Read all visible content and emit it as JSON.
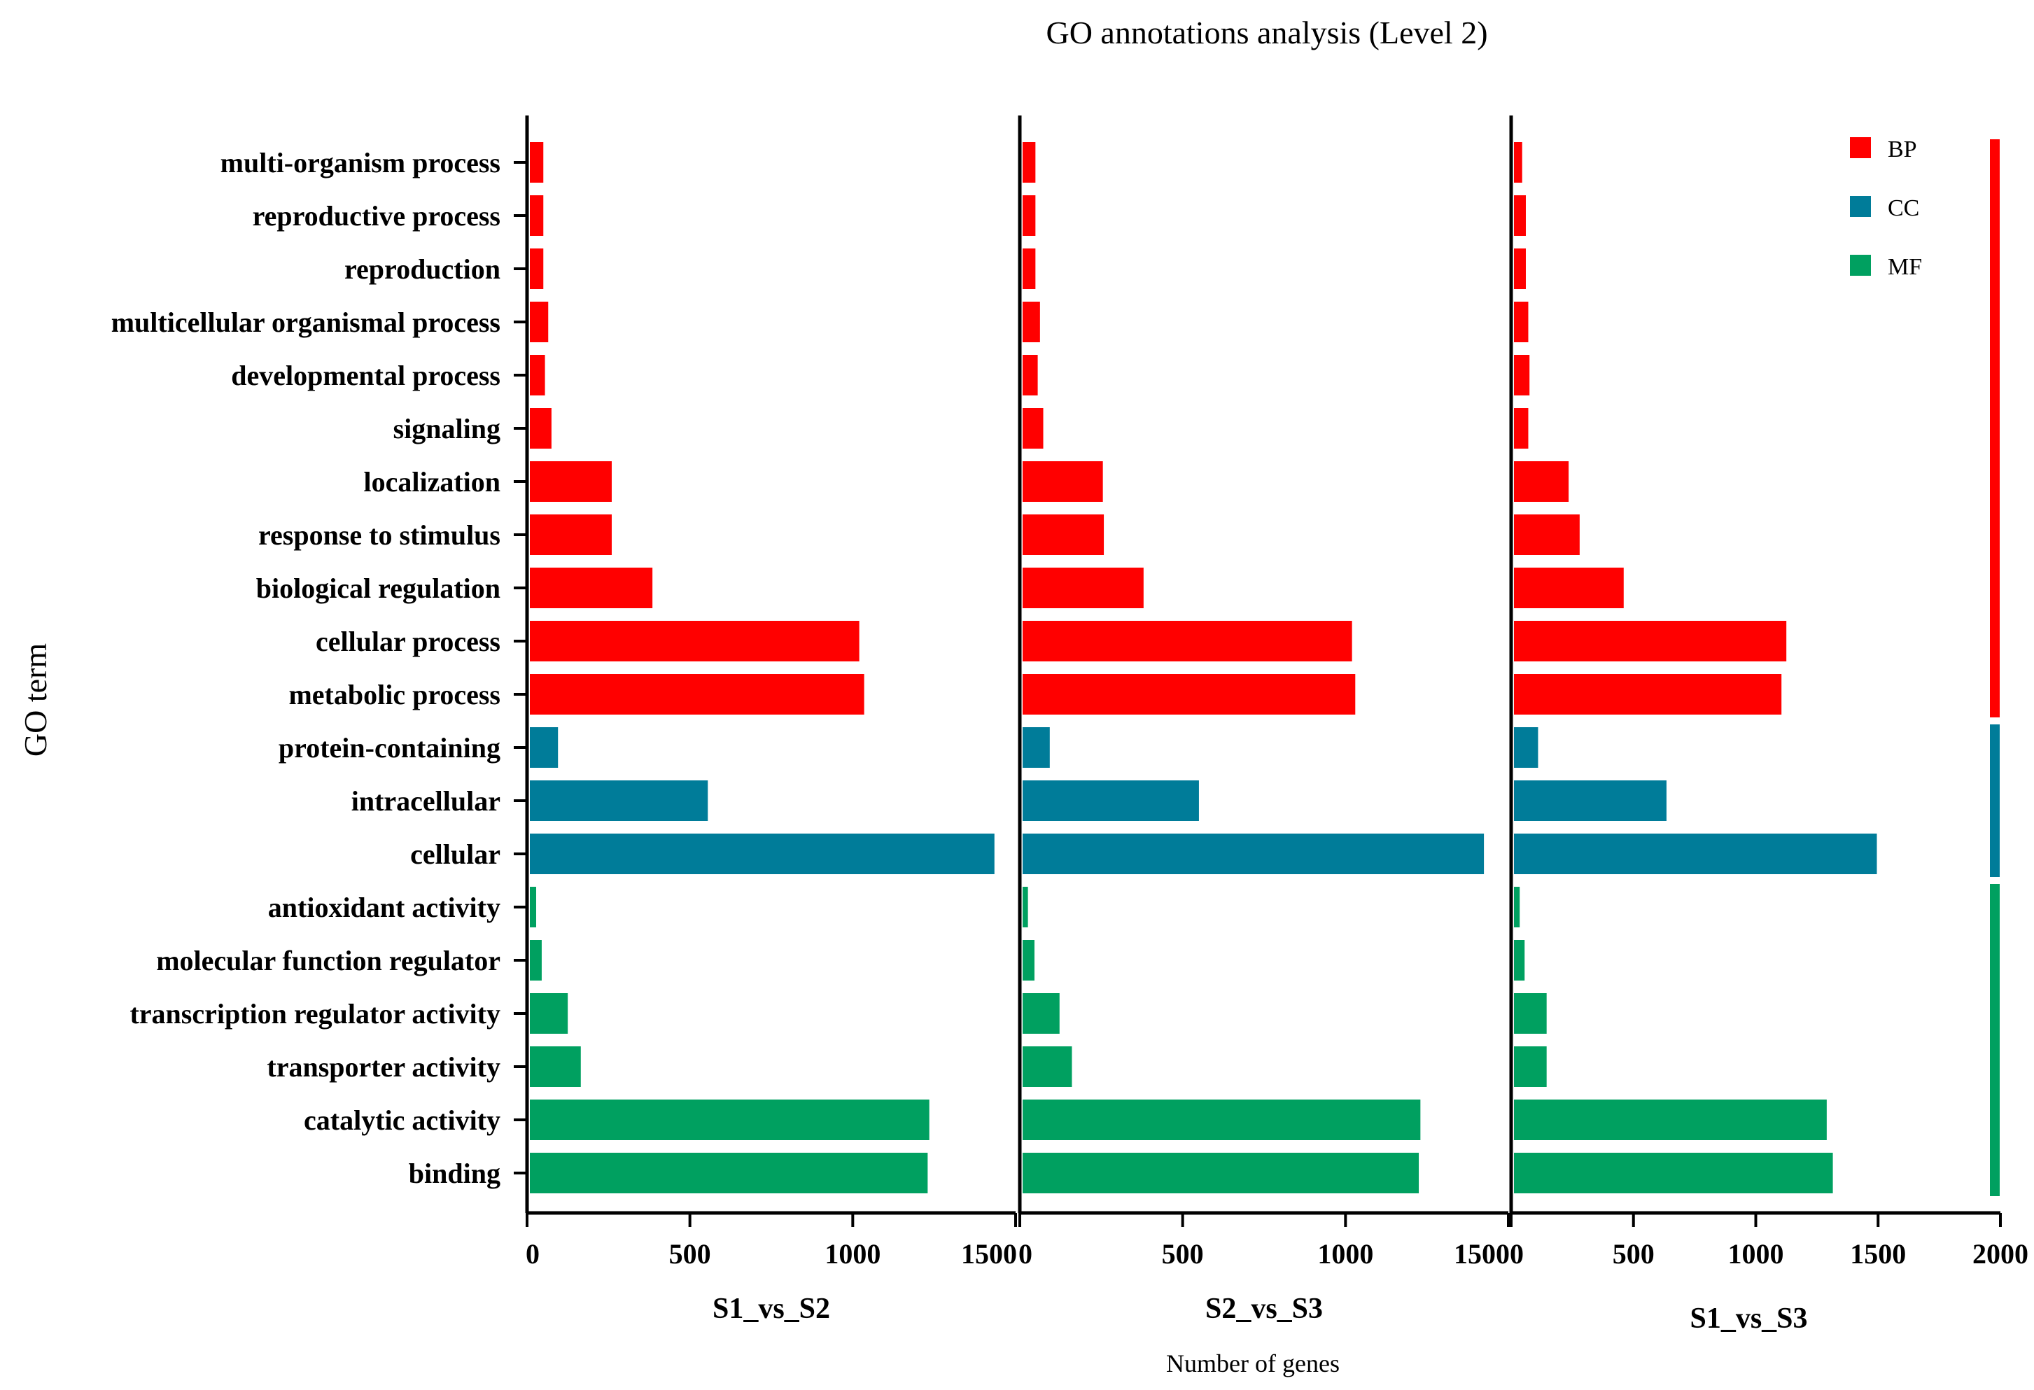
{
  "chart_data": {
    "type": "bar",
    "orientation": "horizontal",
    "title": "GO annotations analysis (Level 2)",
    "xlabel": "Number of genes",
    "ylabel": "GO term",
    "categories": [
      "multi-organism process",
      "reproductive process",
      "reproduction",
      "multicellular organismal process",
      "developmental process",
      "signaling",
      "localization",
      "response to stimulus",
      "biological regulation",
      "cellular process",
      "metabolic process",
      "protein-containing",
      "intracellular",
      "cellular",
      "antioxidant activity",
      "molecular function regulator",
      "transcription regulator activity",
      "transporter activity",
      "catalytic activity",
      "binding"
    ],
    "groups": [
      "BP",
      "BP",
      "BP",
      "BP",
      "BP",
      "BP",
      "BP",
      "BP",
      "BP",
      "BP",
      "BP",
      "CC",
      "CC",
      "CC",
      "MF",
      "MF",
      "MF",
      "MF",
      "MF",
      "MF"
    ],
    "colors": {
      "BP": "#ff0000",
      "CC": "#007c99",
      "MF": "#00a060"
    },
    "legend": [
      {
        "key": "BP",
        "label": "BP"
      },
      {
        "key": "CC",
        "label": "CC"
      },
      {
        "key": "MF",
        "label": "MF"
      }
    ],
    "legend_position": "top-right",
    "series": [
      {
        "name": "S1_vs_S2",
        "xlim": [
          0,
          1500
        ],
        "ticks": [
          0,
          500,
          1000,
          1500
        ],
        "tick_labels": [
          "0",
          "500",
          "1000",
          "1500"
        ],
        "values": [
          50,
          50,
          50,
          65,
          55,
          75,
          260,
          260,
          385,
          1020,
          1035,
          95,
          555,
          1435,
          28,
          45,
          125,
          165,
          1235,
          1230
        ]
      },
      {
        "name": "S2_vs_S3",
        "xlim": [
          0,
          1500
        ],
        "ticks": [
          0,
          500,
          1000,
          1500
        ],
        "tick_labels": [
          "0",
          "500",
          "1000",
          "1500"
        ],
        "values": [
          48,
          48,
          48,
          62,
          55,
          72,
          255,
          258,
          380,
          1020,
          1030,
          92,
          550,
          1425,
          25,
          45,
          122,
          160,
          1230,
          1225
        ]
      },
      {
        "name": "S1_vs_S3",
        "xlim": [
          0,
          2000
        ],
        "ticks": [
          0,
          500,
          1000,
          1500,
          2000
        ],
        "tick_labels": [
          "0",
          "500",
          "1000",
          "1500",
          "2000"
        ],
        "values": [
          45,
          60,
          60,
          70,
          75,
          70,
          235,
          280,
          460,
          1125,
          1105,
          110,
          635,
          1495,
          35,
          55,
          145,
          145,
          1290,
          1315
        ]
      }
    ]
  }
}
